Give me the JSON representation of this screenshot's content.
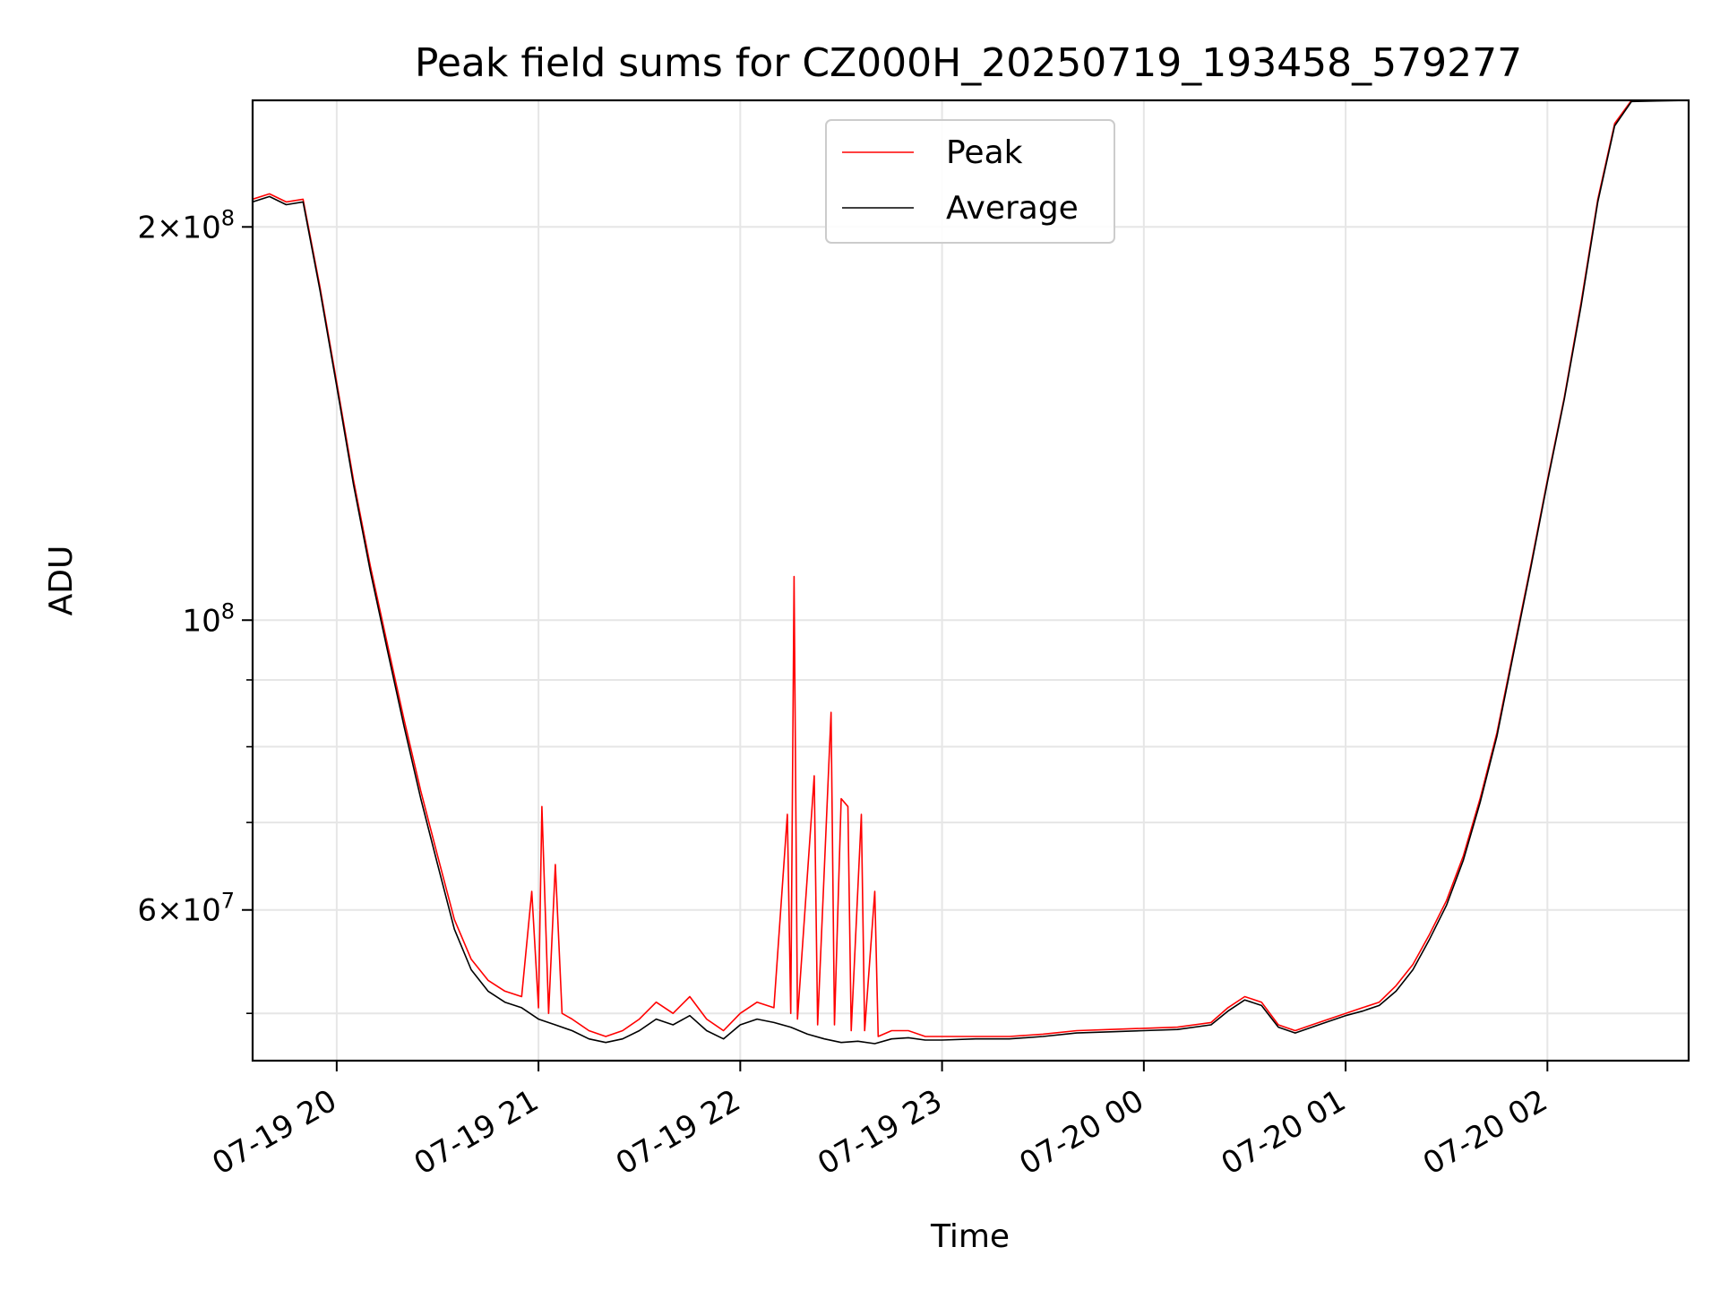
{
  "chart_data": {
    "type": "line",
    "title": "Peak field sums for CZ000H_20250719_193458_579277",
    "xlabel": "Time",
    "ylabel": "ADU",
    "y_scale": "log",
    "ylim": [
      46000000,
      250000000
    ],
    "xlim": [
      "2025-07-19 19:35",
      "2025-07-20 02:42"
    ],
    "grid": true,
    "legend_position": "top-center",
    "x_ticks": [
      {
        "t": "2025-07-19 20:00",
        "label": "07-19 20"
      },
      {
        "t": "2025-07-19 21:00",
        "label": "07-19 21"
      },
      {
        "t": "2025-07-19 22:00",
        "label": "07-19 22"
      },
      {
        "t": "2025-07-19 23:00",
        "label": "07-19 23"
      },
      {
        "t": "2025-07-20 00:00",
        "label": "07-20 00"
      },
      {
        "t": "2025-07-20 01:00",
        "label": "07-20 01"
      },
      {
        "t": "2025-07-20 02:00",
        "label": "07-20 02"
      }
    ],
    "y_major_ticks": [
      {
        "v": 60000000,
        "mant": "6",
        "exp": "7"
      },
      {
        "v": 100000000,
        "mant": "",
        "exp": "8"
      },
      {
        "v": 200000000,
        "mant": "2",
        "exp": "8"
      }
    ],
    "y_minor_ticks": [
      50000000,
      70000000,
      80000000,
      90000000
    ],
    "series": [
      {
        "name": "Peak",
        "color": "#ff0000",
        "points": [
          [
            "2025-07-19 19:35",
            210000000
          ],
          [
            "2025-07-19 19:40",
            212000000
          ],
          [
            "2025-07-19 19:45",
            209000000
          ],
          [
            "2025-07-19 19:50",
            210000000
          ],
          [
            "2025-07-19 19:55",
            180000000
          ],
          [
            "2025-07-19 20:00",
            152000000
          ],
          [
            "2025-07-19 20:05",
            128000000
          ],
          [
            "2025-07-19 20:10",
            110000000
          ],
          [
            "2025-07-19 20:15",
            96000000
          ],
          [
            "2025-07-19 20:20",
            84000000
          ],
          [
            "2025-07-19 20:25",
            74000000
          ],
          [
            "2025-07-19 20:30",
            66000000
          ],
          [
            "2025-07-19 20:35",
            59000000
          ],
          [
            "2025-07-19 20:40",
            55000000
          ],
          [
            "2025-07-19 20:45",
            53000000
          ],
          [
            "2025-07-19 20:50",
            52000000
          ],
          [
            "2025-07-19 20:55",
            51500000
          ],
          [
            "2025-07-19 20:58",
            62000000
          ],
          [
            "2025-07-19 21:00",
            50500000
          ],
          [
            "2025-07-19 21:01",
            72000000
          ],
          [
            "2025-07-19 21:03",
            50000000
          ],
          [
            "2025-07-19 21:05",
            65000000
          ],
          [
            "2025-07-19 21:07",
            50000000
          ],
          [
            "2025-07-19 21:10",
            49500000
          ],
          [
            "2025-07-19 21:15",
            48500000
          ],
          [
            "2025-07-19 21:20",
            48000000
          ],
          [
            "2025-07-19 21:25",
            48500000
          ],
          [
            "2025-07-19 21:30",
            49500000
          ],
          [
            "2025-07-19 21:35",
            51000000
          ],
          [
            "2025-07-19 21:40",
            50000000
          ],
          [
            "2025-07-19 21:45",
            51500000
          ],
          [
            "2025-07-19 21:50",
            49500000
          ],
          [
            "2025-07-19 21:55",
            48500000
          ],
          [
            "2025-07-19 22:00",
            50000000
          ],
          [
            "2025-07-19 22:05",
            51000000
          ],
          [
            "2025-07-19 22:10",
            50500000
          ],
          [
            "2025-07-19 22:14",
            71000000
          ],
          [
            "2025-07-19 22:15",
            50000000
          ],
          [
            "2025-07-19 22:16",
            108000000
          ],
          [
            "2025-07-19 22:17",
            49500000
          ],
          [
            "2025-07-19 22:22",
            76000000
          ],
          [
            "2025-07-19 22:23",
            49000000
          ],
          [
            "2025-07-19 22:27",
            85000000
          ],
          [
            "2025-07-19 22:28",
            49000000
          ],
          [
            "2025-07-19 22:30",
            73000000
          ],
          [
            "2025-07-19 22:32",
            72000000
          ],
          [
            "2025-07-19 22:33",
            48500000
          ],
          [
            "2025-07-19 22:36",
            71000000
          ],
          [
            "2025-07-19 22:37",
            48500000
          ],
          [
            "2025-07-19 22:40",
            62000000
          ],
          [
            "2025-07-19 22:41",
            48000000
          ],
          [
            "2025-07-19 22:45",
            48500000
          ],
          [
            "2025-07-19 22:50",
            48500000
          ],
          [
            "2025-07-19 22:55",
            48000000
          ],
          [
            "2025-07-19 23:00",
            48000000
          ],
          [
            "2025-07-19 23:10",
            48000000
          ],
          [
            "2025-07-19 23:20",
            48000000
          ],
          [
            "2025-07-19 23:30",
            48200000
          ],
          [
            "2025-07-19 23:40",
            48500000
          ],
          [
            "2025-07-19 23:50",
            48600000
          ],
          [
            "2025-07-20 00:00",
            48700000
          ],
          [
            "2025-07-20 00:10",
            48800000
          ],
          [
            "2025-07-20 00:20",
            49200000
          ],
          [
            "2025-07-20 00:25",
            50500000
          ],
          [
            "2025-07-20 00:30",
            51500000
          ],
          [
            "2025-07-20 00:35",
            51000000
          ],
          [
            "2025-07-20 00:40",
            49000000
          ],
          [
            "2025-07-20 00:45",
            48500000
          ],
          [
            "2025-07-20 00:50",
            49000000
          ],
          [
            "2025-07-20 00:55",
            49500000
          ],
          [
            "2025-07-20 01:00",
            50000000
          ],
          [
            "2025-07-20 01:05",
            50500000
          ],
          [
            "2025-07-20 01:10",
            51000000
          ],
          [
            "2025-07-20 01:15",
            52500000
          ],
          [
            "2025-07-20 01:20",
            54500000
          ],
          [
            "2025-07-20 01:25",
            57500000
          ],
          [
            "2025-07-20 01:30",
            61000000
          ],
          [
            "2025-07-20 01:35",
            66000000
          ],
          [
            "2025-07-20 01:40",
            73000000
          ],
          [
            "2025-07-20 01:45",
            82000000
          ],
          [
            "2025-07-20 01:50",
            95000000
          ],
          [
            "2025-07-20 01:55",
            110000000
          ],
          [
            "2025-07-20 02:00",
            128000000
          ],
          [
            "2025-07-20 02:05",
            148000000
          ],
          [
            "2025-07-20 02:10",
            175000000
          ],
          [
            "2025-07-20 02:15",
            210000000
          ],
          [
            "2025-07-20 02:20",
            240000000
          ],
          [
            "2025-07-20 02:25",
            250000000
          ],
          [
            "2025-07-20 02:42",
            250000000
          ]
        ]
      },
      {
        "name": "Average",
        "color": "#000000",
        "points": [
          [
            "2025-07-19 19:35",
            209000000
          ],
          [
            "2025-07-19 19:40",
            211000000
          ],
          [
            "2025-07-19 19:45",
            208000000
          ],
          [
            "2025-07-19 19:50",
            209000000
          ],
          [
            "2025-07-19 19:55",
            179000000
          ],
          [
            "2025-07-19 20:00",
            151000000
          ],
          [
            "2025-07-19 20:05",
            127000000
          ],
          [
            "2025-07-19 20:10",
            109000000
          ],
          [
            "2025-07-19 20:15",
            95000000
          ],
          [
            "2025-07-19 20:20",
            83000000
          ],
          [
            "2025-07-19 20:25",
            73000000
          ],
          [
            "2025-07-19 20:30",
            65000000
          ],
          [
            "2025-07-19 20:35",
            58000000
          ],
          [
            "2025-07-19 20:40",
            54000000
          ],
          [
            "2025-07-19 20:45",
            52000000
          ],
          [
            "2025-07-19 20:50",
            51000000
          ],
          [
            "2025-07-19 20:55",
            50500000
          ],
          [
            "2025-07-19 21:00",
            49500000
          ],
          [
            "2025-07-19 21:05",
            49000000
          ],
          [
            "2025-07-19 21:10",
            48500000
          ],
          [
            "2025-07-19 21:15",
            47800000
          ],
          [
            "2025-07-19 21:20",
            47500000
          ],
          [
            "2025-07-19 21:25",
            47800000
          ],
          [
            "2025-07-19 21:30",
            48500000
          ],
          [
            "2025-07-19 21:35",
            49500000
          ],
          [
            "2025-07-19 21:40",
            49000000
          ],
          [
            "2025-07-19 21:45",
            49800000
          ],
          [
            "2025-07-19 21:50",
            48500000
          ],
          [
            "2025-07-19 21:55",
            47800000
          ],
          [
            "2025-07-19 22:00",
            49000000
          ],
          [
            "2025-07-19 22:05",
            49500000
          ],
          [
            "2025-07-19 22:10",
            49200000
          ],
          [
            "2025-07-19 22:15",
            48800000
          ],
          [
            "2025-07-19 22:20",
            48200000
          ],
          [
            "2025-07-19 22:25",
            47800000
          ],
          [
            "2025-07-19 22:30",
            47500000
          ],
          [
            "2025-07-19 22:35",
            47600000
          ],
          [
            "2025-07-19 22:40",
            47400000
          ],
          [
            "2025-07-19 22:45",
            47800000
          ],
          [
            "2025-07-19 22:50",
            47900000
          ],
          [
            "2025-07-19 22:55",
            47700000
          ],
          [
            "2025-07-19 23:00",
            47700000
          ],
          [
            "2025-07-19 23:10",
            47800000
          ],
          [
            "2025-07-19 23:20",
            47800000
          ],
          [
            "2025-07-19 23:30",
            48000000
          ],
          [
            "2025-07-19 23:40",
            48300000
          ],
          [
            "2025-07-19 23:50",
            48400000
          ],
          [
            "2025-07-20 00:00",
            48500000
          ],
          [
            "2025-07-20 00:10",
            48600000
          ],
          [
            "2025-07-20 00:20",
            49000000
          ],
          [
            "2025-07-20 00:25",
            50200000
          ],
          [
            "2025-07-20 00:30",
            51200000
          ],
          [
            "2025-07-20 00:35",
            50700000
          ],
          [
            "2025-07-20 00:40",
            48800000
          ],
          [
            "2025-07-20 00:45",
            48300000
          ],
          [
            "2025-07-20 00:50",
            48800000
          ],
          [
            "2025-07-20 00:55",
            49300000
          ],
          [
            "2025-07-20 01:00",
            49800000
          ],
          [
            "2025-07-20 01:05",
            50200000
          ],
          [
            "2025-07-20 01:10",
            50700000
          ],
          [
            "2025-07-20 01:15",
            52000000
          ],
          [
            "2025-07-20 01:20",
            54000000
          ],
          [
            "2025-07-20 01:25",
            57000000
          ],
          [
            "2025-07-20 01:30",
            60500000
          ],
          [
            "2025-07-20 01:35",
            65500000
          ],
          [
            "2025-07-20 01:40",
            72500000
          ],
          [
            "2025-07-20 01:45",
            81500000
          ],
          [
            "2025-07-20 01:50",
            94500000
          ],
          [
            "2025-07-20 01:55",
            109500000
          ],
          [
            "2025-07-20 02:00",
            127500000
          ],
          [
            "2025-07-20 02:05",
            147500000
          ],
          [
            "2025-07-20 02:10",
            174000000
          ],
          [
            "2025-07-20 02:15",
            209000000
          ],
          [
            "2025-07-20 02:20",
            239000000
          ],
          [
            "2025-07-20 02:25",
            249500000
          ],
          [
            "2025-07-20 02:42",
            250000000
          ]
        ]
      }
    ]
  }
}
